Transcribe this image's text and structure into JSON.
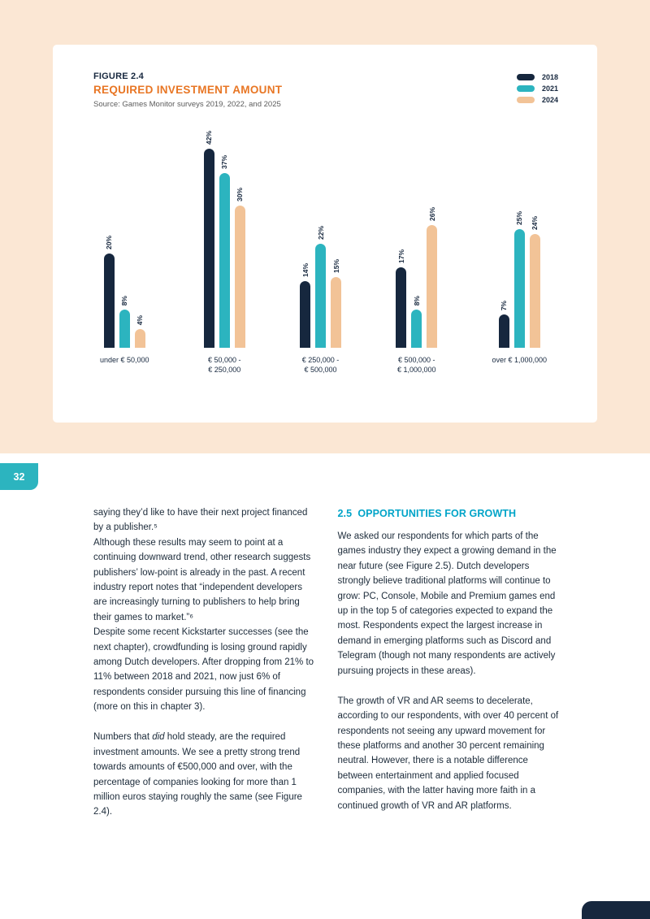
{
  "page": {
    "number": "32"
  },
  "figure": {
    "label": "FIGURE 2.4",
    "title": "REQUIRED INVESTMENT AMOUNT",
    "source": "Source: Games Monitor surveys 2019, 2022, and 2025"
  },
  "chart_data": {
    "type": "bar",
    "title": "REQUIRED INVESTMENT AMOUNT",
    "categories": [
      "under € 50,000",
      "€ 50,000 -\n€ 250,000",
      "€ 250,000 -\n€ 500,000",
      "€ 500,000 -\n€ 1,000,000",
      "over € 1,000,000"
    ],
    "series": [
      {
        "name": "2018",
        "color": "#16273e",
        "values": [
          20,
          42,
          14,
          17,
          7
        ]
      },
      {
        "name": "2021",
        "color": "#2cb4bf",
        "values": [
          8,
          37,
          22,
          8,
          25
        ]
      },
      {
        "name": "2024",
        "color": "#f2c397",
        "values": [
          4,
          30,
          15,
          26,
          24
        ]
      }
    ],
    "value_suffix": "%",
    "xlabel": "",
    "ylabel": "",
    "ylim": [
      0,
      45
    ],
    "grid": false,
    "legend_position": "top-right"
  },
  "left_column": {
    "paragraphs": [
      {
        "gap_before": false,
        "runs": [
          {
            "text": "saying they’d like to have their next project financed by a publisher.⁵"
          }
        ]
      },
      {
        "gap_before": false,
        "runs": [
          {
            "text": "Although these results may seem to point at a continuing downward trend, other research suggests publishers’ low-point is already in the past. A recent industry report notes that “independent developers are increasingly turning to publishers to help bring their games to market.”⁶"
          }
        ]
      },
      {
        "gap_before": false,
        "runs": [
          {
            "text": "Despite some recent Kickstarter successes (see the next chapter), crowdfunding is losing ground rapidly among Dutch developers. After dropping from 21% to 11% between 2018 and 2021, now just 6% of respondents consider pursuing this line of financing (more on this in chapter 3)."
          }
        ]
      },
      {
        "gap_before": true,
        "runs": [
          {
            "text": "Numbers that "
          },
          {
            "text": "did",
            "italic": true
          },
          {
            "text": " hold steady, are the required investment amounts. We see a pretty strong trend towards amounts of €500,000 and over, with the percentage of companies looking for more than 1 million euros staying roughly the same (see Figure 2.4)."
          }
        ]
      }
    ]
  },
  "right_column": {
    "heading": "2.5  OPPORTUNITIES FOR GROWTH",
    "paragraphs": [
      {
        "gap_before": false,
        "runs": [
          {
            "text": "We asked our respondents for which parts of the games industry they expect a growing demand in the near future (see Figure 2.5). Dutch developers strongly believe traditional platforms will continue to grow: PC, Console, Mobile and Premium games end up in the top 5 of categories expected to expand the most. Respondents expect the largest increase in demand in emerging platforms such as Discord and Telegram (though not many respondents are actively pursuing projects in these areas)."
          }
        ]
      },
      {
        "gap_before": true,
        "runs": [
          {
            "text": "The growth of VR and AR seems to decelerate, according to our respondents, with over 40 percent of respondents not seeing any upward movement for these platforms and another 30 percent remaining neutral. However, there is a notable difference between entertainment and applied focused companies, with the latter having more faith in a continued growth of VR and AR platforms."
          }
        ]
      }
    ]
  }
}
